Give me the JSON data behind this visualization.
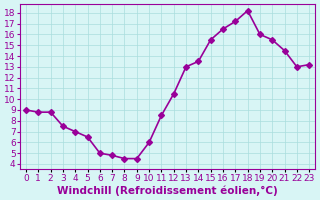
{
  "x": [
    0,
    1,
    2,
    3,
    4,
    5,
    6,
    7,
    8,
    9,
    10,
    11,
    12,
    13,
    14,
    15,
    16,
    17,
    18,
    19,
    20,
    21,
    22,
    23
  ],
  "y": [
    9,
    8.8,
    8.8,
    7.5,
    7,
    6.5,
    5,
    4.8,
    4.5,
    4.5,
    6,
    8.5,
    10.5,
    13,
    13.5,
    15.5,
    16.5,
    17.2,
    18.2,
    16,
    15.5,
    14.5,
    13,
    13.2
  ],
  "line_color": "#990099",
  "marker": "D",
  "marker_size": 3,
  "linewidth": 1.2,
  "bg_color": "#d8f5f5",
  "grid_color": "#aadddd",
  "xlabel": "Windchill (Refroidissement éolien,°C)",
  "xlabel_fontsize": 7.5,
  "xlabel_color": "#990099",
  "ylabel_ticks": [
    4,
    5,
    6,
    7,
    8,
    9,
    10,
    11,
    12,
    13,
    14,
    15,
    16,
    17,
    18
  ],
  "xtick_labels": [
    "0",
    "1",
    "2",
    "3",
    "4",
    "5",
    "6",
    "7",
    "8",
    "9",
    "10",
    "11",
    "12",
    "13",
    "14",
    "15",
    "16",
    "17",
    "18",
    "19",
    "20",
    "21",
    "22",
    "23"
  ],
  "ylim": [
    3.5,
    18.8
  ],
  "xlim": [
    -0.5,
    23.5
  ],
  "tick_fontsize": 6.5,
  "tick_color": "#990099"
}
